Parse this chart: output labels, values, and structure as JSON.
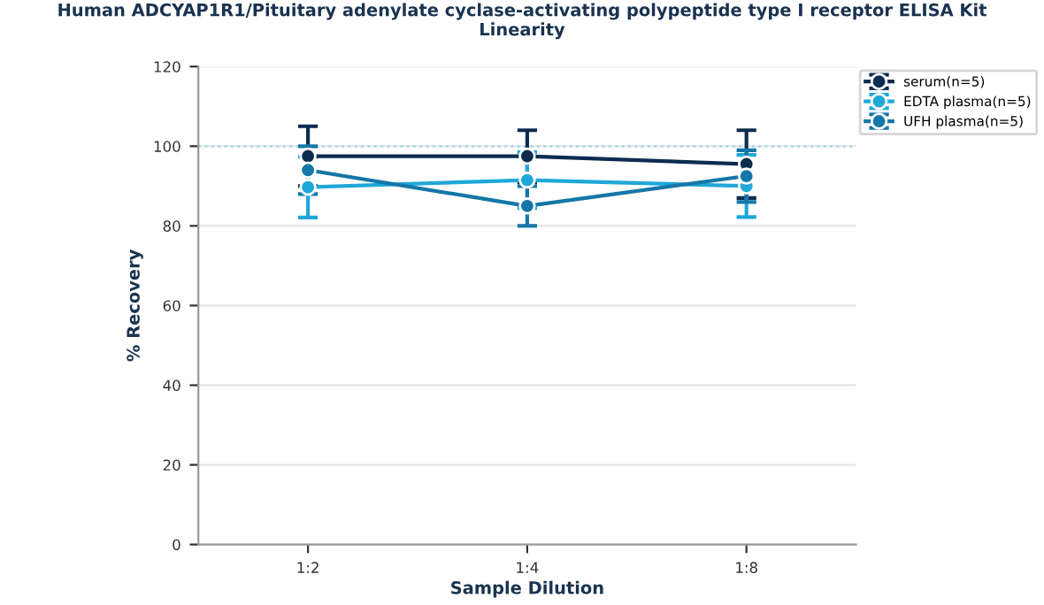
{
  "chart_data": {
    "type": "line",
    "title": "Human ADCYAP1R1/Pituitary adenylate cyclase-activating polypeptide type I receptor ELISA Kit\nLinearity",
    "xlabel": "Sample Dilution",
    "ylabel": "% Recovery",
    "categories": [
      "1:2",
      "1:4",
      "1:8"
    ],
    "series": [
      {
        "name": "serum(n=5)",
        "color": "#0d2c4f",
        "values": [
          97.5,
          97.5,
          95.5
        ],
        "errors": [
          7.5,
          6.5,
          8.5
        ]
      },
      {
        "name": "EDTA plasma(n=5)",
        "color": "#1fa8d8",
        "values": [
          89.7,
          91.5,
          90
        ],
        "errors": [
          7.6,
          7,
          7.8
        ]
      },
      {
        "name": "UFH plasma(n=5)",
        "color": "#1577a8",
        "values": [
          94,
          85,
          92.5
        ],
        "errors": [
          6,
          5,
          6.5
        ]
      }
    ],
    "ylim": [
      0,
      120
    ],
    "yticks": [
      0,
      20,
      40,
      60,
      80,
      100,
      120
    ],
    "grid": "y",
    "legend": "top right",
    "marker": "circle",
    "line_style": "solid",
    "ref_lines": [
      {
        "axis": "y",
        "value": 100,
        "color": "#a8d8ea",
        "line_style": "dotted"
      }
    ]
  }
}
